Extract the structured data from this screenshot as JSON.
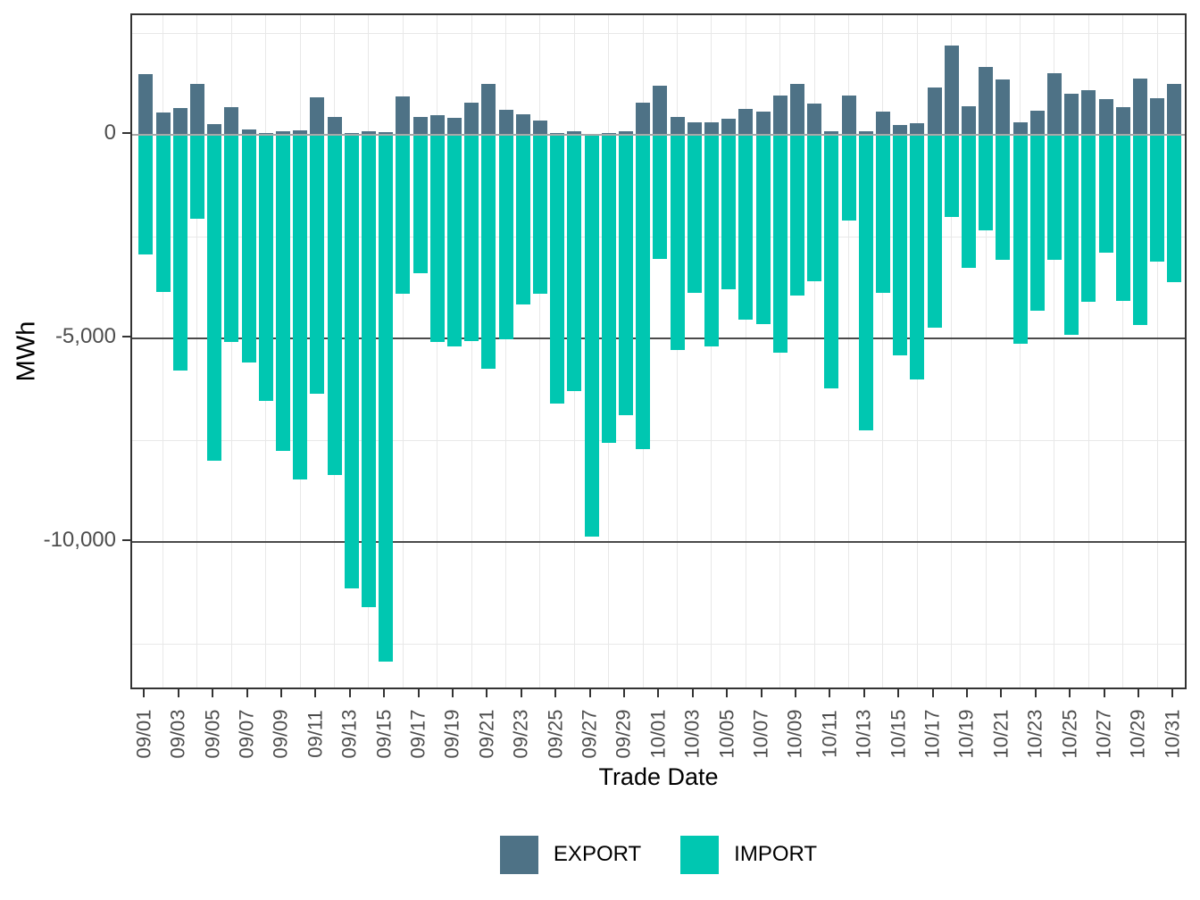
{
  "chart_data": {
    "type": "bar",
    "title": "",
    "xlabel": "Trade Date",
    "ylabel": "MWh",
    "ylim": [
      -13700,
      2940
    ],
    "grid": true,
    "legend_position": "bottom",
    "y_major_ticks": [
      0,
      -5000,
      -10000
    ],
    "y_tick_labels": [
      "0",
      "-5,000",
      "-10,000"
    ],
    "y_minor_gridlines": [
      2500,
      -2500,
      -7500,
      -12500
    ],
    "x_tick_labels": [
      "09/01",
      "09/03",
      "09/05",
      "09/07",
      "09/09",
      "09/11",
      "09/13",
      "09/15",
      "09/17",
      "09/19",
      "09/21",
      "09/23",
      "09/25",
      "09/27",
      "09/29",
      "10/01",
      "10/03",
      "10/05",
      "10/07",
      "10/09",
      "10/11",
      "10/13",
      "10/15",
      "10/17",
      "10/19",
      "10/21",
      "10/23",
      "10/25",
      "10/27",
      "10/29",
      "10/31"
    ],
    "categories": [
      "09/01",
      "09/02",
      "09/03",
      "09/04",
      "09/05",
      "09/06",
      "09/07",
      "09/08",
      "09/09",
      "09/10",
      "09/11",
      "09/12",
      "09/13",
      "09/14",
      "09/15",
      "09/16",
      "09/17",
      "09/18",
      "09/19",
      "09/20",
      "09/21",
      "09/22",
      "09/23",
      "09/24",
      "09/25",
      "09/26",
      "09/27",
      "09/28",
      "09/29",
      "09/30",
      "10/01",
      "10/02",
      "10/03",
      "10/04",
      "10/05",
      "10/06",
      "10/07",
      "10/08",
      "10/09",
      "10/10",
      "10/11",
      "10/12",
      "10/13",
      "10/14",
      "10/15",
      "10/16",
      "10/17",
      "10/18",
      "10/19",
      "10/20",
      "10/21",
      "10/22",
      "10/23",
      "10/24",
      "10/25",
      "10/26",
      "10/27",
      "10/28",
      "10/29",
      "10/30",
      "10/31"
    ],
    "series": [
      {
        "name": "EXPORT",
        "color": "#4e7286",
        "values": [
          1500,
          550,
          650,
          1260,
          255,
          680,
          130,
          35,
          80,
          110,
          925,
          445,
          35,
          90,
          65,
          950,
          445,
          485,
          410,
          790,
          1240,
          620,
          505,
          350,
          45,
          80,
          30,
          45,
          90,
          790,
          1210,
          445,
          310,
          300,
          390,
          645,
          570,
          965,
          1250,
          760,
          80,
          975,
          95,
          570,
          240,
          285,
          1165,
          2190,
          700,
          1675,
          1360,
          310,
          595,
          1515,
          1010,
          1100,
          880,
          680,
          1385,
          910,
          1250
        ]
      },
      {
        "name": "IMPORT",
        "color": "#00c7b1",
        "values": [
          -2930,
          -3850,
          -5780,
          -2060,
          -8015,
          -5080,
          -5590,
          -6540,
          -7765,
          -8470,
          -6360,
          -8345,
          -11130,
          -11600,
          -12930,
          -3905,
          -3390,
          -5090,
          -5190,
          -5060,
          -5740,
          -5025,
          -4160,
          -3905,
          -6600,
          -6285,
          -9860,
          -7575,
          -6895,
          -7715,
          -3050,
          -5280,
          -3885,
          -5195,
          -3800,
          -4535,
          -4650,
          -5340,
          -3955,
          -3590,
          -6225,
          -2095,
          -7260,
          -3890,
          -5420,
          -6005,
          -4730,
          -2015,
          -3270,
          -2345,
          -3060,
          -5135,
          -4310,
          -3075,
          -4910,
          -4095,
          -2895,
          -4075,
          -4680,
          -3105,
          -3610
        ]
      }
    ]
  },
  "colors": {
    "export": "#4e7286",
    "import": "#00c7b1",
    "zero_line": "#a8a8a8",
    "major_gridline": "#4a4a4a",
    "minor_gridline": "#e8e8e8",
    "axis_text": "#4d4d4d",
    "plot_border": "#333333"
  }
}
